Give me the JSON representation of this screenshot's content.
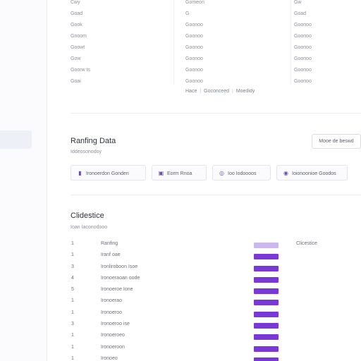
{
  "top_table": {
    "col1": [
      "Cwy",
      "Goad",
      "Gook",
      "Gnoom",
      "Goowt",
      "Gow",
      "Goorw ts",
      "Goai"
    ],
    "col2": [
      "Gomeon",
      "G",
      "Goonoo",
      "Goonoo",
      "Goonoo",
      "Goonoo",
      "Goonoo",
      "Goonoo"
    ],
    "col3": [
      "Gw",
      "Goad",
      "Goonoo",
      "Goonoo",
      "Goonoo",
      "Goonoo",
      "Goonoo",
      "Goonoo"
    ],
    "legend": [
      "Hace",
      "Goconceed",
      "Moedidy"
    ]
  },
  "ranking": {
    "title": "Ranfing Data",
    "subtitle": "Iddeosonodoy",
    "action_label": "Mooe de beswd",
    "chips": [
      {
        "icon": "chart-icon",
        "glyph": "▮",
        "label": "Ironoerdon Gonden"
      },
      {
        "icon": "box-icon",
        "glyph": "▣",
        "label": "Eorm Rnoa"
      },
      {
        "icon": "search-icon",
        "glyph": "◎",
        "label": "Ioo Iodoooos"
      },
      {
        "icon": "circle-icon",
        "glyph": "◉",
        "label": "Ioionoonioe Goodos"
      }
    ]
  },
  "classification": {
    "title": "Clidestice",
    "subtitle": "Ioan Iaconodooo",
    "header_note": "Clicestice",
    "rows": [
      {
        "num": "1",
        "name": "Ranfing",
        "light": true
      },
      {
        "num": "1",
        "name": "Iranf oae",
        "light": false
      },
      {
        "num": "3",
        "name": "Ironliroboon Isoe",
        "light": false
      },
      {
        "num": "4",
        "name": "Ironoeraoan oode",
        "light": false
      },
      {
        "num": "5",
        "name": "Ironoeroe Ione",
        "light": false
      },
      {
        "num": "1",
        "name": "Ironoerao",
        "light": false
      },
      {
        "num": "1",
        "name": "Ironoeroo",
        "light": false
      },
      {
        "num": "3",
        "name": "Ironoeroo   ise",
        "light": false
      },
      {
        "num": "1",
        "name": "Ironoeroeo",
        "light": false
      },
      {
        "num": "1",
        "name": "Ironoeroon",
        "light": false
      },
      {
        "num": "1",
        "name": "Ironoeo",
        "light": false
      }
    ]
  }
}
